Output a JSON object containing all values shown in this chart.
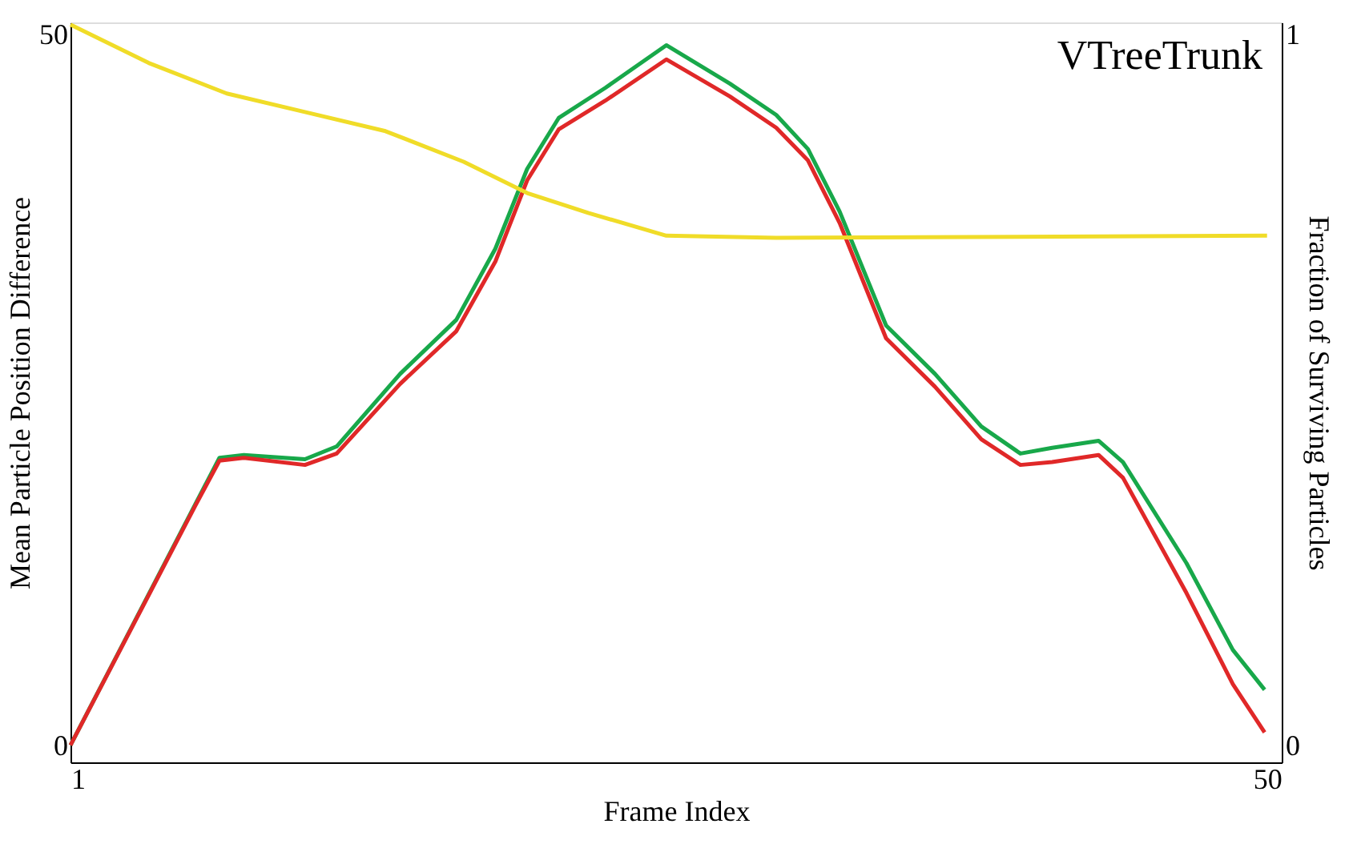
{
  "chart_data": {
    "type": "line",
    "annotations": [
      "VTreeTrunk"
    ],
    "xlabel": "Frame Index",
    "ylabel": "Mean Particle Position Difference",
    "y2label": "Fraction of Surviving Particles",
    "xlim": [
      1,
      50.6
    ],
    "xticks": [
      1,
      50
    ],
    "ylim": [
      -1.1,
      50.9
    ],
    "yticks": [
      0,
      50
    ],
    "y2lim": [
      -0.023,
      1.018
    ],
    "y2ticks": [
      0,
      1
    ],
    "grid": false,
    "legend": false,
    "marker": "none",
    "line_style": "solid",
    "series": [
      {
        "color": "#f0dc28",
        "axis": "y2",
        "x": [
          1,
          4.2,
          7.4,
          10.6,
          13.9,
          17.1,
          19.7,
          22.2,
          25.4,
          29.9,
          50
        ],
        "values": [
          1.015,
          0.961,
          0.918,
          0.892,
          0.865,
          0.822,
          0.778,
          0.75,
          0.718,
          0.715,
          0.718
        ]
      },
      {
        "color": "#18a84a",
        "x": [
          1,
          6.1,
          7.1,
          8.1,
          10.6,
          11.9,
          14.5,
          16.8,
          18.4,
          19.7,
          21,
          22.9,
          25.4,
          28,
          29.9,
          31.2,
          32.5,
          34.4,
          36.4,
          38.3,
          39.9,
          41.2,
          43.1,
          44.1,
          46.7,
          48.6,
          49.9
        ],
        "values": [
          0.1,
          17.0,
          20.3,
          20.5,
          20.2,
          21.1,
          26.2,
          30.0,
          35.0,
          40.6,
          44.2,
          46.3,
          49.3,
          46.6,
          44.4,
          42.0,
          37.6,
          29.6,
          26.2,
          22.5,
          20.6,
          21.0,
          21.5,
          20.0,
          12.9,
          6.8,
          4.0
        ]
      },
      {
        "color": "#e02828",
        "x": [
          1,
          6.1,
          7.1,
          8.1,
          10.6,
          11.9,
          14.5,
          16.8,
          18.4,
          19.7,
          21,
          22.9,
          25.4,
          28,
          29.9,
          31.2,
          32.5,
          34.4,
          36.4,
          38.3,
          39.9,
          41.2,
          43.1,
          44.1,
          46.7,
          48.6,
          49.9
        ],
        "values": [
          0.1,
          16.9,
          20.1,
          20.3,
          19.8,
          20.6,
          25.5,
          29.2,
          34.1,
          39.8,
          43.4,
          45.4,
          48.3,
          45.7,
          43.5,
          41.2,
          36.8,
          28.7,
          25.3,
          21.6,
          19.8,
          20.0,
          20.5,
          18.9,
          10.8,
          4.4,
          1.0
        ]
      }
    ]
  }
}
